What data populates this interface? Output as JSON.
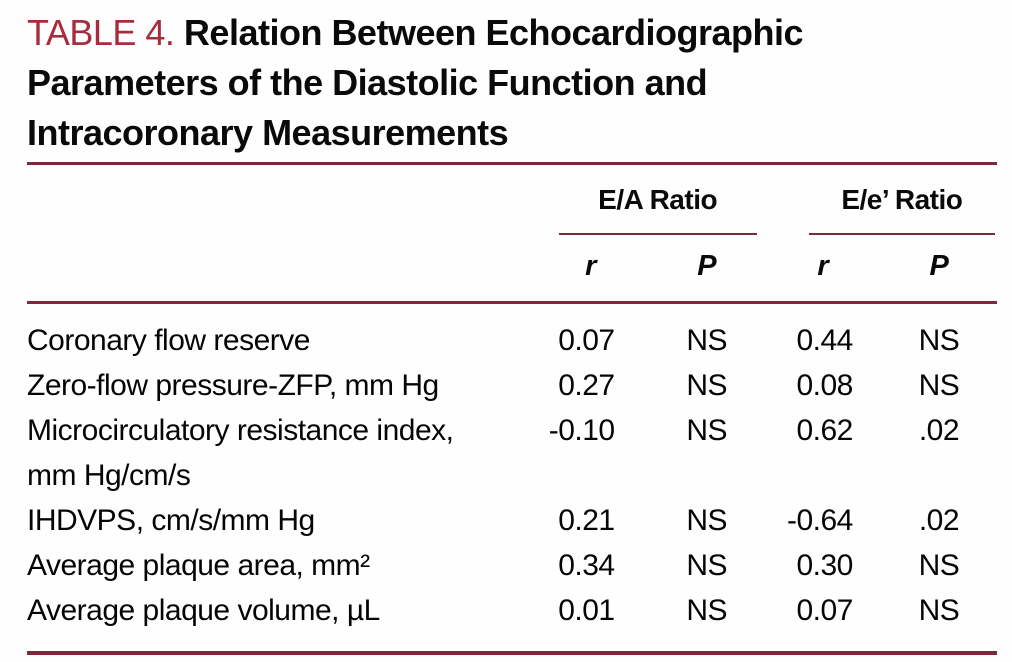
{
  "title": {
    "label": "TABLE 4.",
    "heading": "Relation Between Echocardiographic Parameters of the Diastolic Function and Intracoronary Measurements"
  },
  "colors": {
    "accent_red": "#a62c3e",
    "rule_maroon": "#7a2a3b",
    "text": "#0a0a0a",
    "background": "#fffefe"
  },
  "table": {
    "groups": [
      {
        "label": "E/A Ratio"
      },
      {
        "label": "E/e’ Ratio"
      }
    ],
    "subheaders": [
      "r",
      "P",
      "r",
      "P"
    ],
    "rows": [
      {
        "label": "Coronary flow reserve",
        "ea_r": "0.07",
        "ea_p": "NS",
        "ee_r": "0.44",
        "ee_p": "NS"
      },
      {
        "label": "Zero-flow pressure-ZFP, mm Hg",
        "ea_r": "0.27",
        "ea_p": "NS",
        "ee_r": "0.08",
        "ee_p": "NS"
      },
      {
        "label": "Microcirculatory resistance index, mm Hg/cm/s",
        "ea_r": "-0.10",
        "ea_p": "NS",
        "ee_r": "0.62",
        "ee_p": ".02"
      },
      {
        "label": "IHDVPS, cm/s/mm Hg",
        "ea_r": "0.21",
        "ea_p": "NS",
        "ee_r": "-0.64",
        "ee_p": ".02"
      },
      {
        "label": "Average plaque area, mm²",
        "ea_r": "0.34",
        "ea_p": "NS",
        "ee_r": "0.30",
        "ee_p": "NS"
      },
      {
        "label": "Average plaque volume, µL",
        "ea_r": "0.01",
        "ea_p": "NS",
        "ee_r": "0.07",
        "ee_p": "NS"
      }
    ]
  }
}
